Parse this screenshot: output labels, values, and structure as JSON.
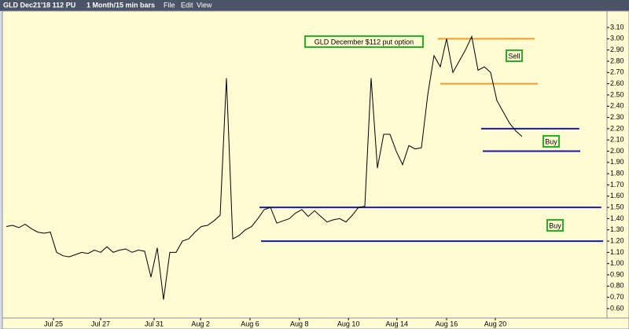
{
  "toolbar": {
    "symbol": "GLD Dec21'18 112 PU",
    "period": "1 Month/15 min bars",
    "menus": [
      "File",
      "Edit",
      "View"
    ]
  },
  "chart_data": {
    "type": "line",
    "color": "#000000",
    "values": [
      1.33,
      1.34,
      1.32,
      1.35,
      1.31,
      1.28,
      1.27,
      1.28,
      1.1,
      1.07,
      1.06,
      1.08,
      1.1,
      1.09,
      1.12,
      1.1,
      1.15,
      1.1,
      1.12,
      1.13,
      1.1,
      1.12,
      1.11,
      0.88,
      1.14,
      0.68,
      1.1,
      1.1,
      1.2,
      1.22,
      1.28,
      1.33,
      1.34,
      1.38,
      1.43,
      2.65,
      1.22,
      1.25,
      1.3,
      1.33,
      1.4,
      1.48,
      1.5,
      1.36,
      1.38,
      1.4,
      1.45,
      1.48,
      1.42,
      1.47,
      1.42,
      1.37,
      1.39,
      1.4,
      1.37,
      1.43,
      1.5,
      1.51,
      2.65,
      1.85,
      2.15,
      2.15,
      2.0,
      1.88,
      2.05,
      2.02,
      2.03,
      2.5,
      2.85,
      2.75,
      3.0,
      2.7,
      2.8,
      2.9,
      3.02,
      2.72,
      2.75,
      2.7,
      2.45,
      2.35,
      2.25,
      2.18,
      2.13
    ],
    "xlim": [
      0,
      95.5
    ],
    "xticks": [
      {
        "value": 7.5,
        "label": "Jul 25"
      },
      {
        "value": 15,
        "label": "Jul 27"
      },
      {
        "value": 23.5,
        "label": "Jul 31"
      },
      {
        "value": 30.9,
        "label": "Aug 2"
      },
      {
        "value": 38.75,
        "label": "Aug 6"
      },
      {
        "value": 46.6,
        "label": "Aug 8"
      },
      {
        "value": 54.4,
        "label": "Aug 10"
      },
      {
        "value": 62.1,
        "label": "Aug 14"
      },
      {
        "value": 70,
        "label": "Aug 16"
      },
      {
        "value": 77.75,
        "label": "Aug 20"
      }
    ],
    "ylim": [
      0.516,
      3.247
    ],
    "yticks": [
      {
        "value": 0.6,
        "label": "0.60"
      },
      {
        "value": 0.7,
        "label": "0.70"
      },
      {
        "value": 0.8,
        "label": "0.80"
      },
      {
        "value": 0.9,
        "label": "0.90"
      },
      {
        "value": 1.0,
        "label": "1.00"
      },
      {
        "value": 1.1,
        "label": "1.10"
      },
      {
        "value": 1.2,
        "label": "1.20"
      },
      {
        "value": 1.3,
        "label": "1.30"
      },
      {
        "value": 1.4,
        "label": "1.40"
      },
      {
        "value": 1.5,
        "label": "1.50"
      },
      {
        "value": 1.6,
        "label": "1.60"
      },
      {
        "value": 1.7,
        "label": "1.70"
      },
      {
        "value": 1.8,
        "label": "1.80"
      },
      {
        "value": 1.9,
        "label": "1.90"
      },
      {
        "value": 2.0,
        "label": "2.00"
      },
      {
        "value": 2.1,
        "label": "2.10"
      },
      {
        "value": 2.2,
        "label": "2.20"
      },
      {
        "value": 2.3,
        "label": "2.30"
      },
      {
        "value": 2.4,
        "label": "2.40"
      },
      {
        "value": 2.5,
        "label": "2.50"
      },
      {
        "value": 2.6,
        "label": "2.60"
      },
      {
        "value": 2.7,
        "label": "2.70"
      },
      {
        "value": 2.8,
        "label": "2.80"
      },
      {
        "value": 2.9,
        "label": "2.90"
      },
      {
        "value": 3.0,
        "label": "3.00"
      },
      {
        "value": 3.1,
        "label": "3.10"
      }
    ],
    "levels": [
      {
        "value": 3.0,
        "color": "#f39c2b",
        "x": [
          68.6,
          84
        ]
      },
      {
        "value": 2.6,
        "color": "#f39c2b",
        "x": [
          69,
          84.5
        ]
      },
      {
        "value": 2.2,
        "color": "#1a1aa8",
        "x": [
          75.5,
          91.1
        ]
      },
      {
        "value": 2.0,
        "color": "#1a1aa8",
        "x": [
          75.75,
          91.25
        ]
      },
      {
        "value": 1.5,
        "color": "#1a1aa8",
        "x": [
          40.25,
          94.6
        ]
      },
      {
        "value": 1.2,
        "color": "#1a1aa8",
        "x": [
          40.5,
          94.9
        ]
      }
    ],
    "annotations": [
      "GLD December $112 put option",
      "Sell",
      "Buy",
      "Buy"
    ]
  }
}
